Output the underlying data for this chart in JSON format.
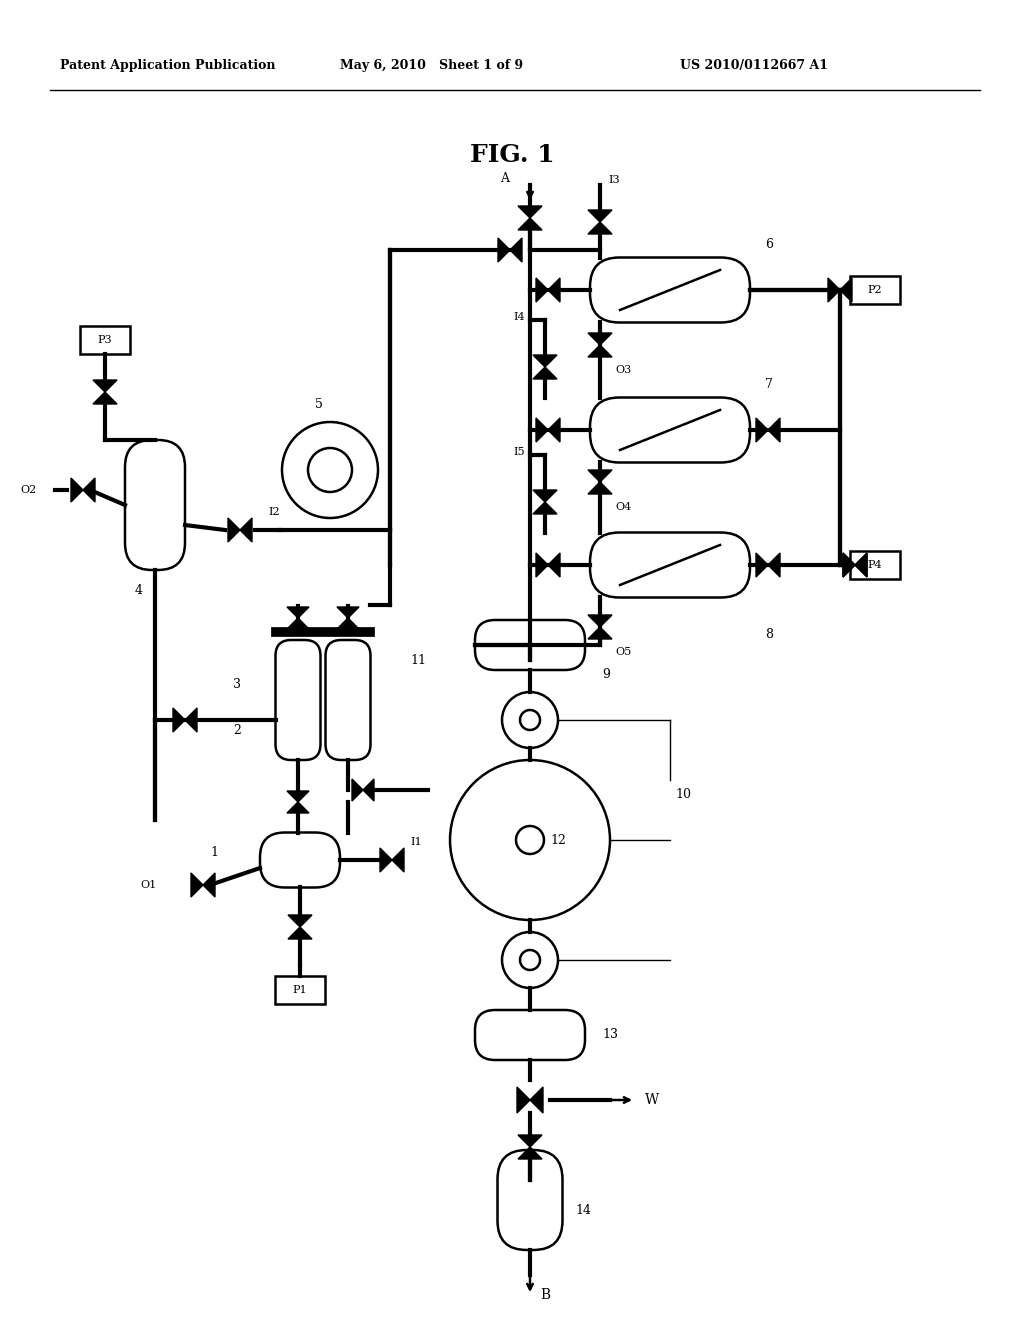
{
  "title": "FIG. 1",
  "header_left": "Patent Application Publication",
  "header_mid": "May 6, 2010   Sheet 1 of 9",
  "header_right": "US 2010/0112667 A1",
  "bg_color": "#ffffff",
  "lw": 1.8,
  "tlw": 3.0
}
